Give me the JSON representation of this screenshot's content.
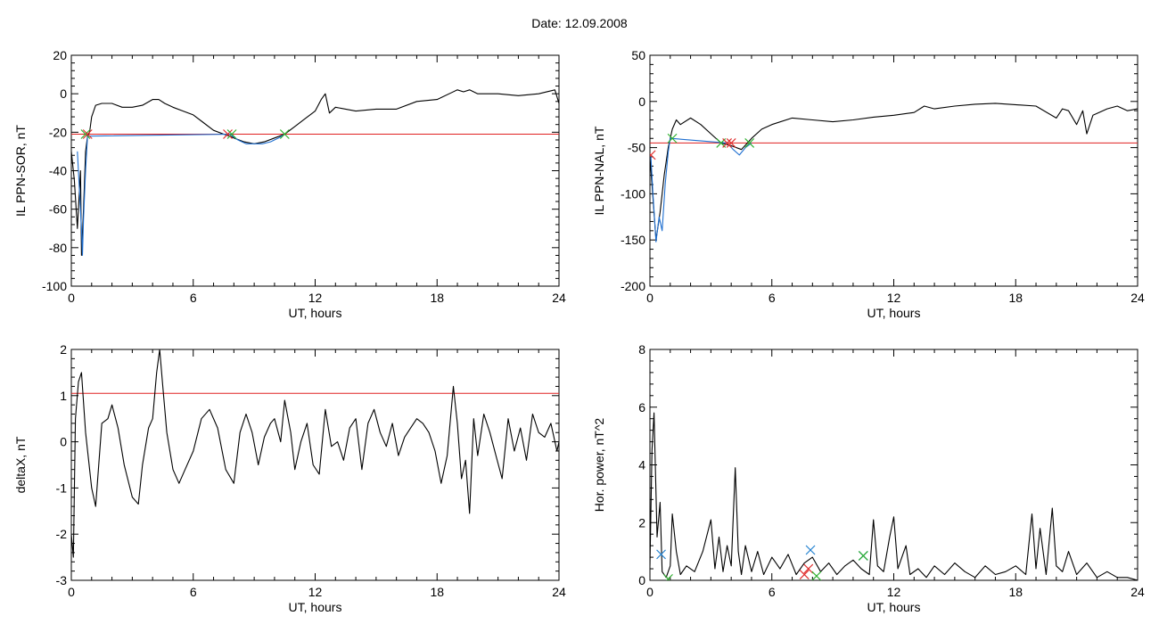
{
  "figure": {
    "title": "Date:  12.09.2008"
  },
  "colors": {
    "trace": "#000000",
    "threshold": "#e02020",
    "highlight": "#1f6fd0",
    "start_marker": "#30b030",
    "peak_marker": "#e03030",
    "power_marker": "#2080d0",
    "frame": "#000000"
  },
  "chart_data": [
    {
      "id": "il-ppn-sor",
      "type": "line",
      "title": "",
      "xlabel": "UT, hours",
      "ylabel": "IL PPN-SOR, nT",
      "xlim": [
        0,
        24
      ],
      "ylim": [
        -100,
        20
      ],
      "xticks": [
        "0",
        "6",
        "12",
        "18",
        "24"
      ],
      "yticks": [
        "20",
        "0",
        "-20",
        "-40",
        "-60",
        "-80",
        "-100"
      ],
      "threshold": -21,
      "series": [
        {
          "color": "black",
          "x": [
            0,
            0.15,
            0.3,
            0.45,
            0.5,
            0.6,
            0.7,
            0.8,
            0.9,
            1.0,
            1.2,
            1.5,
            2.0,
            2.5,
            3.0,
            3.5,
            4.0,
            4.3,
            4.6,
            5.0,
            5.5,
            6.0,
            6.5,
            7.0,
            7.5,
            7.8,
            8.0,
            8.5,
            9.0,
            9.5,
            10.0,
            10.5,
            11.0,
            11.5,
            12.0,
            12.3,
            12.5,
            12.7,
            13.0,
            14.0,
            15.0,
            16.0,
            17.0,
            18.0,
            19.0,
            19.3,
            19.6,
            20.0,
            21.0,
            22.0,
            23.0,
            23.8,
            24.0
          ],
          "y": [
            -30,
            -45,
            -70,
            -40,
            -84,
            -60,
            -30,
            -22,
            -20,
            -12,
            -6,
            -5,
            -5,
            -7,
            -7,
            -6,
            -3,
            -3,
            -5,
            -7,
            -9,
            -11,
            -15,
            -19,
            -21,
            -22,
            -23,
            -25,
            -26,
            -25,
            -23,
            -21,
            -17,
            -13,
            -9,
            -3,
            0,
            -10,
            -7,
            -9,
            -8,
            -8,
            -4,
            -3,
            2,
            1,
            2,
            0,
            0,
            -1,
            0,
            2,
            -5
          ]
        },
        {
          "color": "blue",
          "x": [
            0.3,
            0.4,
            0.5,
            0.55,
            0.6,
            0.7,
            0.8,
            7.8,
            8.2,
            8.6,
            9.0,
            9.4,
            9.8,
            10.2,
            10.5
          ],
          "y": [
            -30,
            -50,
            -70,
            -84,
            -65,
            -40,
            -22,
            -21,
            -24,
            -26,
            -26,
            -26,
            -25,
            -23,
            -21
          ]
        }
      ],
      "markers": [
        {
          "x": 0.7,
          "y": -21,
          "color": "green",
          "symbol": "x"
        },
        {
          "x": 0.8,
          "y": -21,
          "color": "red",
          "symbol": "x"
        },
        {
          "x": 7.7,
          "y": -21,
          "color": "red",
          "symbol": "x"
        },
        {
          "x": 7.9,
          "y": -21,
          "color": "green",
          "symbol": "x"
        },
        {
          "x": 10.5,
          "y": -21,
          "color": "green",
          "symbol": "x"
        }
      ]
    },
    {
      "id": "il-ppn-nal",
      "type": "line",
      "title": "",
      "xlabel": "UT, hours",
      "ylabel": "IL PPN-NAL, nT",
      "xlim": [
        0,
        24
      ],
      "ylim": [
        -200,
        50
      ],
      "xticks": [
        "0",
        "6",
        "12",
        "18",
        "24"
      ],
      "yticks": [
        "50",
        "0",
        "-50",
        "-100",
        "-150",
        "-200"
      ],
      "threshold": -45,
      "series": [
        {
          "color": "black",
          "x": [
            0,
            0.1,
            0.3,
            0.5,
            0.7,
            0.9,
            1.0,
            1.1,
            1.3,
            1.5,
            2.0,
            2.5,
            3.0,
            3.5,
            4.0,
            4.5,
            5.0,
            5.5,
            6.0,
            7.0,
            8.0,
            9.0,
            10.0,
            11.0,
            12.0,
            13.0,
            13.5,
            14.0,
            15.0,
            16.0,
            17.0,
            19.0,
            20.0,
            20.3,
            20.6,
            21.0,
            21.3,
            21.5,
            21.8,
            22.5,
            23.0,
            23.5,
            24.0
          ],
          "y": [
            -60,
            -90,
            -150,
            -120,
            -80,
            -50,
            -40,
            -30,
            -20,
            -25,
            -18,
            -25,
            -35,
            -45,
            -48,
            -52,
            -40,
            -30,
            -25,
            -18,
            -20,
            -22,
            -20,
            -17,
            -15,
            -12,
            -5,
            -8,
            -5,
            -3,
            -2,
            -5,
            -18,
            -8,
            -10,
            -25,
            -10,
            -35,
            -15,
            -8,
            -5,
            -10,
            -8
          ]
        },
        {
          "color": "blue",
          "x": [
            0.05,
            0.15,
            0.3,
            0.45,
            0.6,
            0.75,
            0.9,
            1.0,
            3.8,
            4.1,
            4.4,
            4.7,
            5.0
          ],
          "y": [
            -60,
            -100,
            -152,
            -125,
            -140,
            -90,
            -55,
            -40,
            -45,
            -52,
            -58,
            -50,
            -45
          ]
        }
      ],
      "markers": [
        {
          "x": 0.05,
          "y": -58,
          "color": "red",
          "symbol": "x"
        },
        {
          "x": 1.1,
          "y": -40,
          "color": "green",
          "symbol": "x"
        },
        {
          "x": 3.5,
          "y": -45,
          "color": "green",
          "symbol": "x"
        },
        {
          "x": 3.8,
          "y": -45,
          "color": "red",
          "symbol": "x"
        },
        {
          "x": 4.0,
          "y": -45,
          "color": "red",
          "symbol": "x"
        },
        {
          "x": 4.9,
          "y": -45,
          "color": "green",
          "symbol": "x"
        }
      ]
    },
    {
      "id": "deltax",
      "type": "line",
      "title": "",
      "xlabel": "UT, hours",
      "ylabel": "deltaX, nT",
      "xlim": [
        0,
        24
      ],
      "ylim": [
        -3,
        2
      ],
      "xticks": [
        "0",
        "6",
        "12",
        "18",
        "24"
      ],
      "yticks": [
        "2",
        "1",
        "0",
        "-1",
        "-2",
        "-3"
      ],
      "threshold": 1.05,
      "series": [
        {
          "color": "black",
          "x": [
            0,
            0.1,
            0.2,
            0.35,
            0.5,
            0.7,
            1.0,
            1.2,
            1.5,
            1.8,
            2.0,
            2.3,
            2.6,
            3.0,
            3.3,
            3.5,
            3.8,
            4.0,
            4.2,
            4.35,
            4.5,
            4.7,
            5.0,
            5.3,
            5.6,
            6.0,
            6.4,
            6.8,
            7.2,
            7.6,
            8.0,
            8.3,
            8.6,
            8.9,
            9.2,
            9.5,
            9.8,
            10.0,
            10.3,
            10.5,
            10.8,
            11.0,
            11.3,
            11.6,
            11.9,
            12.2,
            12.5,
            12.8,
            13.1,
            13.4,
            13.7,
            14.0,
            14.3,
            14.6,
            14.9,
            15.2,
            15.5,
            15.8,
            16.1,
            16.4,
            16.7,
            17.0,
            17.3,
            17.6,
            17.9,
            18.2,
            18.5,
            18.8,
            19.0,
            19.2,
            19.4,
            19.6,
            19.8,
            20.0,
            20.3,
            20.6,
            20.9,
            21.2,
            21.5,
            21.8,
            22.1,
            22.4,
            22.7,
            23.0,
            23.3,
            23.6,
            23.9,
            24.0
          ],
          "y": [
            -2.0,
            -2.5,
            0.5,
            1.3,
            1.5,
            0.2,
            -1.0,
            -1.4,
            0.4,
            0.5,
            0.8,
            0.3,
            -0.5,
            -1.2,
            -1.35,
            -0.5,
            0.3,
            0.5,
            1.5,
            2.0,
            1.2,
            0.2,
            -0.6,
            -0.9,
            -0.6,
            -0.2,
            0.5,
            0.7,
            0.3,
            -0.6,
            -0.9,
            0.2,
            0.6,
            0.2,
            -0.5,
            0.1,
            0.4,
            0.5,
            0.0,
            0.9,
            0.2,
            -0.6,
            0.0,
            0.4,
            -0.5,
            -0.7,
            0.7,
            -0.1,
            0.0,
            -0.4,
            0.3,
            0.5,
            -0.6,
            0.4,
            0.7,
            0.2,
            -0.1,
            0.4,
            -0.3,
            0.1,
            0.3,
            0.5,
            0.4,
            0.2,
            -0.2,
            -0.9,
            -0.3,
            1.2,
            0.4,
            -0.8,
            -0.4,
            -1.55,
            0.5,
            -0.3,
            0.6,
            0.2,
            -0.3,
            -0.8,
            0.5,
            -0.2,
            0.3,
            -0.4,
            0.6,
            0.2,
            0.1,
            0.4,
            -0.2,
            0.0
          ]
        }
      ],
      "markers": []
    },
    {
      "id": "hor-power",
      "type": "line",
      "title": "",
      "xlabel": "UT, hours",
      "ylabel": "Hor. power, nT^2",
      "xlim": [
        0,
        24
      ],
      "ylim": [
        0,
        8
      ],
      "xticks": [
        "0",
        "6",
        "12",
        "18",
        "24"
      ],
      "yticks": [
        "8",
        "6",
        "4",
        "2",
        "0"
      ],
      "threshold": null,
      "series": [
        {
          "color": "black",
          "x": [
            0,
            0.1,
            0.2,
            0.35,
            0.5,
            0.6,
            0.8,
            1.0,
            1.1,
            1.3,
            1.5,
            1.8,
            2.2,
            2.6,
            3.0,
            3.2,
            3.4,
            3.6,
            3.8,
            4.0,
            4.2,
            4.35,
            4.5,
            4.7,
            5.0,
            5.3,
            5.6,
            6.0,
            6.4,
            6.8,
            7.2,
            7.6,
            8.0,
            8.4,
            8.8,
            9.2,
            9.6,
            10.0,
            10.4,
            10.8,
            11.0,
            11.2,
            11.5,
            11.8,
            12.0,
            12.2,
            12.4,
            12.6,
            12.8,
            13.2,
            13.6,
            14.0,
            14.5,
            15.0,
            15.5,
            16.0,
            16.5,
            17.0,
            17.5,
            18.0,
            18.5,
            18.8,
            19.0,
            19.2,
            19.5,
            19.8,
            20.0,
            20.3,
            20.6,
            21.0,
            21.5,
            22.0,
            22.5,
            23.0,
            23.5,
            24.0
          ],
          "y": [
            0.5,
            4.5,
            5.8,
            1.5,
            2.7,
            0.3,
            0.1,
            0.5,
            2.3,
            1.0,
            0.2,
            0.5,
            0.3,
            1.0,
            2.1,
            0.4,
            1.5,
            0.3,
            1.2,
            0.5,
            3.9,
            1.0,
            0.2,
            1.2,
            0.3,
            1.0,
            0.2,
            0.8,
            0.4,
            0.9,
            0.2,
            0.6,
            0.8,
            0.3,
            0.6,
            0.2,
            0.5,
            0.7,
            0.4,
            0.2,
            2.1,
            0.5,
            0.3,
            1.5,
            2.2,
            0.4,
            0.8,
            1.2,
            0.2,
            0.4,
            0.1,
            0.5,
            0.2,
            0.6,
            0.3,
            0.1,
            0.5,
            0.2,
            0.3,
            0.5,
            0.2,
            2.3,
            0.4,
            1.8,
            0.2,
            2.5,
            0.5,
            0.3,
            1.0,
            0.2,
            0.6,
            0.1,
            0.3,
            0.1,
            0.1,
            0.0
          ]
        }
      ],
      "markers": [
        {
          "x": 0.55,
          "y": 0.9,
          "color": "blue",
          "symbol": "x"
        },
        {
          "x": 0.9,
          "y": 0.05,
          "color": "green",
          "symbol": "x"
        },
        {
          "x": 7.6,
          "y": 0.2,
          "color": "red",
          "symbol": "x"
        },
        {
          "x": 7.8,
          "y": 0.4,
          "color": "red",
          "symbol": "x"
        },
        {
          "x": 7.9,
          "y": 1.05,
          "color": "blue",
          "symbol": "x"
        },
        {
          "x": 8.2,
          "y": 0.15,
          "color": "green",
          "symbol": "x"
        },
        {
          "x": 10.5,
          "y": 0.85,
          "color": "blue",
          "symbol": "x"
        },
        {
          "x": 10.5,
          "y": 0.85,
          "color": "green",
          "symbol": "x"
        }
      ]
    }
  ]
}
